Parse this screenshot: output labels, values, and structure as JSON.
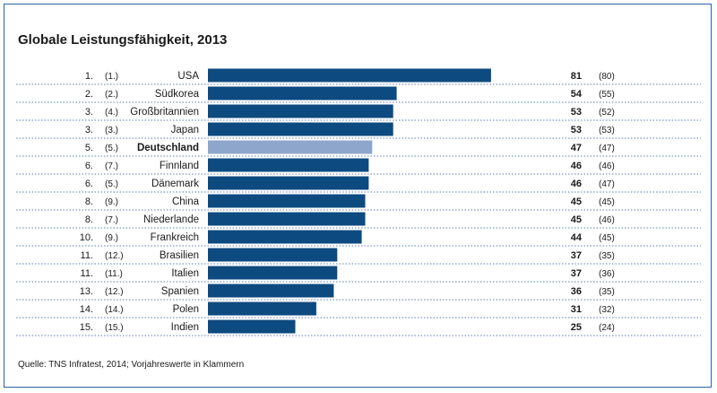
{
  "chart_data": {
    "type": "bar",
    "orientation": "horizontal",
    "title": "Globale Leistungsfähigkeit, 2013",
    "source": "Quelle: TNS Infratest, 2014; Vorjahreswerte in Klammern",
    "highlight_category": "Deutschland",
    "colors": {
      "bar": "#0d4a80",
      "highlight": "#8fa6cc",
      "separator": "#5b7fb8",
      "frame": "#2d63a8"
    },
    "rows": [
      {
        "rank": "1.",
        "prev_rank": "(1.)",
        "country": "USA",
        "value": 81,
        "prev_value": "(80)"
      },
      {
        "rank": "2.",
        "prev_rank": "(2.)",
        "country": "Südkorea",
        "value": 54,
        "prev_value": "(55)"
      },
      {
        "rank": "3.",
        "prev_rank": "(4.)",
        "country": "Großbritannien",
        "value": 53,
        "prev_value": "(52)"
      },
      {
        "rank": "3.",
        "prev_rank": "(3.)",
        "country": "Japan",
        "value": 53,
        "prev_value": "(53)"
      },
      {
        "rank": "5.",
        "prev_rank": "(5.)",
        "country": "Deutschland",
        "value": 47,
        "prev_value": "(47)"
      },
      {
        "rank": "6.",
        "prev_rank": "(7.)",
        "country": "Finnland",
        "value": 46,
        "prev_value": "(46)"
      },
      {
        "rank": "6.",
        "prev_rank": "(5.)",
        "country": "Dänemark",
        "value": 46,
        "prev_value": "(47)"
      },
      {
        "rank": "8.",
        "prev_rank": "(9.)",
        "country": "China",
        "value": 45,
        "prev_value": "(45)"
      },
      {
        "rank": "8.",
        "prev_rank": "(7.)",
        "country": "Niederlande",
        "value": 45,
        "prev_value": "(46)"
      },
      {
        "rank": "10.",
        "prev_rank": "(9.)",
        "country": "Frankreich",
        "value": 44,
        "prev_value": "(45)"
      },
      {
        "rank": "11.",
        "prev_rank": "(12.)",
        "country": "Brasilien",
        "value": 37,
        "prev_value": "(35)"
      },
      {
        "rank": "11.",
        "prev_rank": "(11.)",
        "country": "Italien",
        "value": 37,
        "prev_value": "(36)"
      },
      {
        "rank": "13.",
        "prev_rank": "(12.)",
        "country": "Spanien",
        "value": 36,
        "prev_value": "(35)"
      },
      {
        "rank": "14.",
        "prev_rank": "(14.)",
        "country": "Polen",
        "value": 31,
        "prev_value": "(32)"
      },
      {
        "rank": "15.",
        "prev_rank": "(15.)",
        "country": "Indien",
        "value": 25,
        "prev_value": "(24)"
      }
    ]
  }
}
